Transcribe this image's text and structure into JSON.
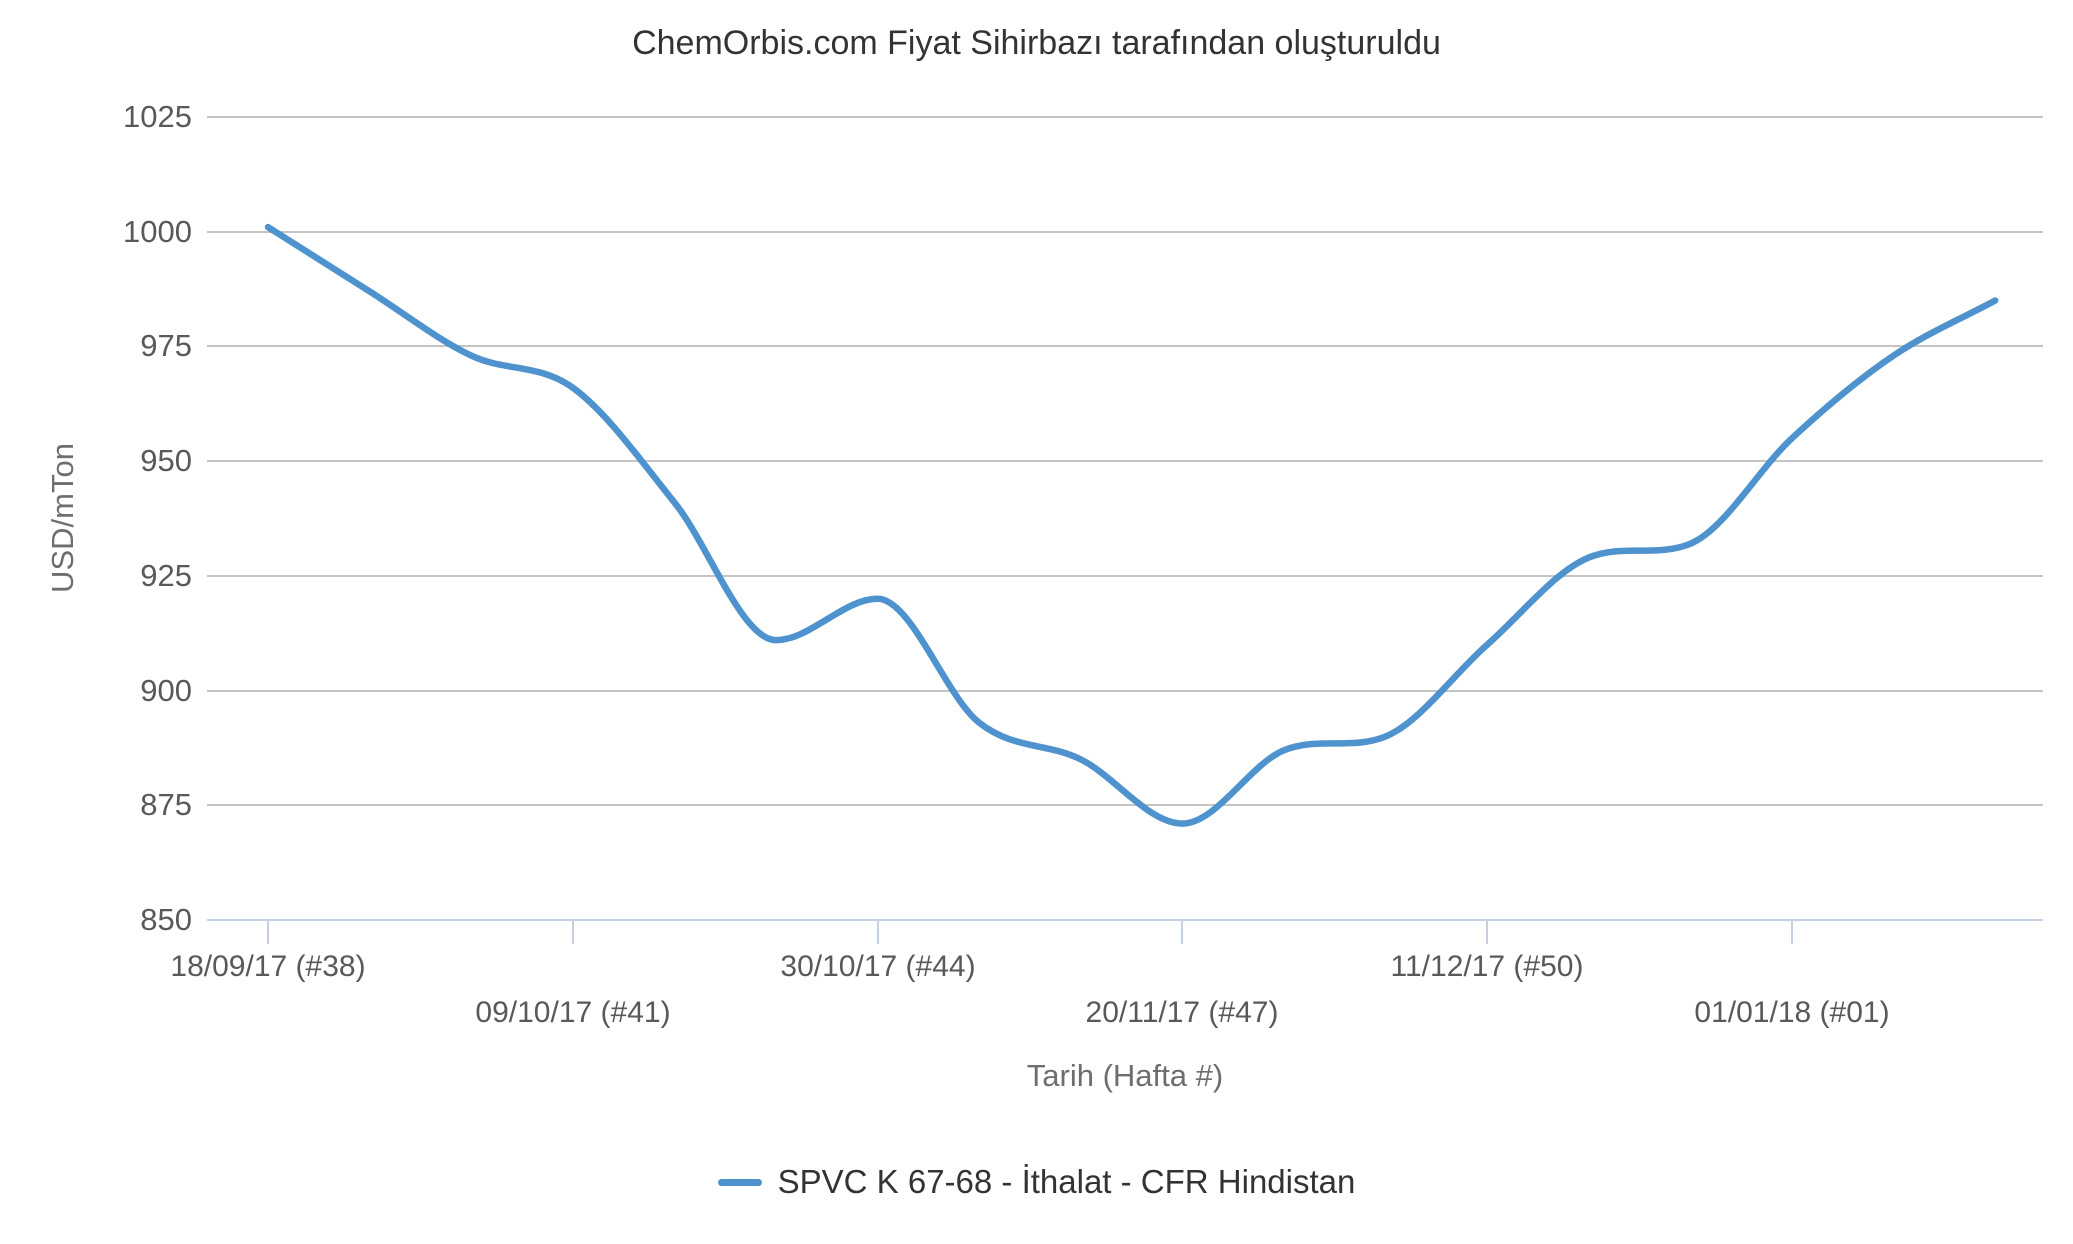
{
  "chart_data": {
    "type": "line",
    "title": "ChemOrbis.com Fiyat Sihirbazı tarafından oluşturuldu",
    "xlabel": "Tarih (Hafta #)",
    "ylabel": "USD/mTon",
    "ylim": [
      850,
      1025
    ],
    "yticks": [
      850,
      875,
      900,
      925,
      950,
      975,
      1000,
      1025
    ],
    "grid": true,
    "legend_position": "bottom-center",
    "n_points": 18,
    "x_unit": "week",
    "xticks": [
      {
        "point_index": 0,
        "label": "18/09/17 (#38)",
        "row": 1
      },
      {
        "point_index": 3,
        "label": "09/10/17 (#41)",
        "row": 2
      },
      {
        "point_index": 6,
        "label": "30/10/17 (#44)",
        "row": 1
      },
      {
        "point_index": 9,
        "label": "20/11/17 (#47)",
        "row": 2
      },
      {
        "point_index": 12,
        "label": "11/12/17 (#50)",
        "row": 1
      },
      {
        "point_index": 15,
        "label": "01/01/18 (#01)",
        "row": 2
      }
    ],
    "series": [
      {
        "name": "SPVC K 67-68 - İthalat - CFR Hindistan",
        "color": "#4E93CE",
        "values": [
          1001,
          987,
          973,
          966,
          941,
          911,
          920,
          893,
          885,
          871,
          887,
          890,
          910,
          929,
          932,
          955,
          973,
          985
        ]
      }
    ]
  },
  "colors": {
    "gridline": "#C4C4C4",
    "axis_line": "#C5D1E1",
    "tick_label": "#58595B",
    "axis_title": "#6D6E70",
    "title": "#333333",
    "background": "#FFFFFF"
  }
}
